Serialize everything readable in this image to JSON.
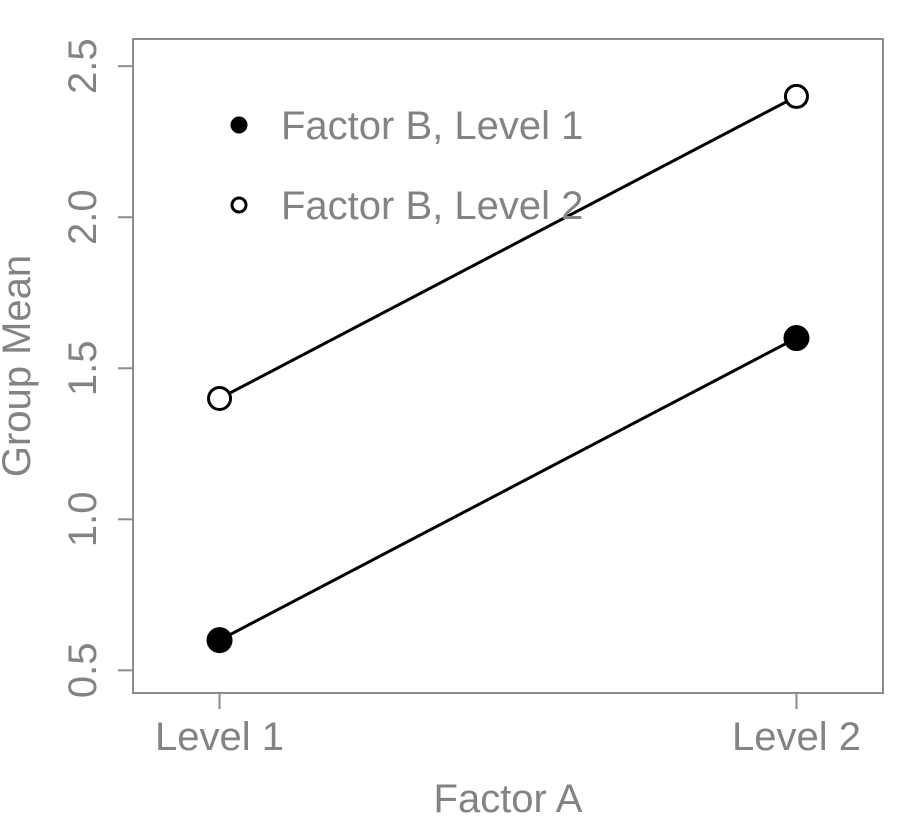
{
  "chart_data": {
    "type": "line",
    "title": "",
    "xlabel": "Factor A",
    "ylabel": "Group Mean",
    "categories": [
      "Level 1",
      "Level 2"
    ],
    "x": [
      1,
      2
    ],
    "series": [
      {
        "name": "Factor B, Level 1",
        "marker": "filled-circle",
        "values": [
          0.6,
          1.6
        ]
      },
      {
        "name": "Factor B, Level 2",
        "marker": "open-circle",
        "values": [
          1.4,
          2.4
        ]
      }
    ],
    "yticks": [
      0.5,
      1.0,
      1.5,
      2.0,
      2.5
    ],
    "ytick_labels": [
      "0.5",
      "1.0",
      "1.5",
      "2.0",
      "2.5"
    ],
    "xlim": [
      0.85,
      2.15
    ],
    "ylim": [
      0.425,
      2.59
    ],
    "grid": false,
    "legend_position": "top-left-inside",
    "legend_entries": [
      "Factor B, Level 1",
      "Factor B, Level 2"
    ],
    "colors": {
      "line": "#000000",
      "marker_fill": "#000000",
      "marker_open_fill": "#ffffff",
      "axis": "#8c8c8c",
      "text": "#838383",
      "background": "#ffffff"
    }
  }
}
